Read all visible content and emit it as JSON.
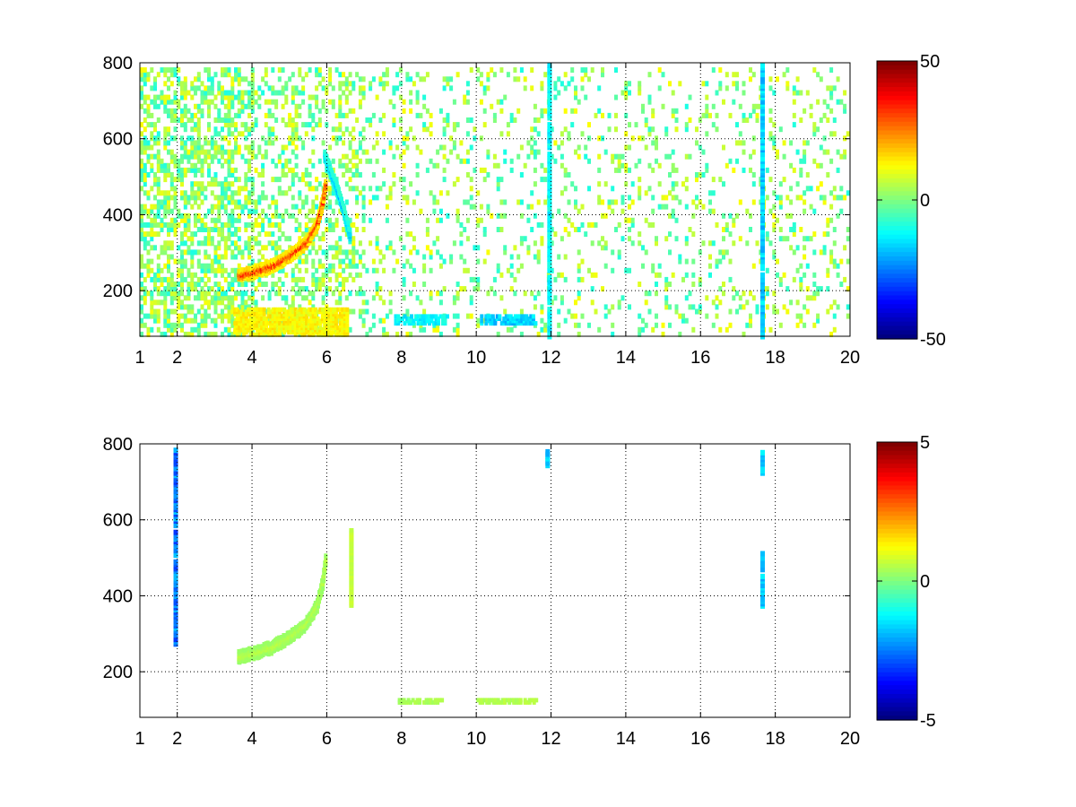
{
  "chart_data": [
    {
      "type": "heatmap",
      "title": "",
      "xlabel": "",
      "ylabel": "",
      "xlim": [
        1,
        20
      ],
      "ylim": [
        80,
        800
      ],
      "xticks": [
        "1",
        "2",
        "4",
        "6",
        "8",
        "10",
        "12",
        "14",
        "16",
        "18",
        "20"
      ],
      "yticks": [
        "200",
        "400",
        "600",
        "800"
      ],
      "grid": true,
      "colormap": "jet",
      "clim": [
        -50,
        50
      ],
      "colorbar_ticks": [
        "50",
        "0",
        "-50"
      ],
      "features": [
        {
          "kind": "ridge",
          "x": [
            3.6,
            4.0,
            4.5,
            5.0,
            5.4,
            5.7,
            5.85,
            5.95
          ],
          "y": [
            245,
            255,
            270,
            300,
            330,
            380,
            440,
            500
          ],
          "value": 35
        },
        {
          "kind": "ridge",
          "x": [
            5.9,
            6.2,
            6.4,
            6.5,
            6.6
          ],
          "y": [
            560,
            480,
            420,
            380,
            340
          ],
          "value": -20
        },
        {
          "kind": "band",
          "x_range": [
            3.5,
            6.5
          ],
          "y_range": [
            90,
            160
          ],
          "value": 15
        },
        {
          "kind": "band",
          "x_range": [
            7.8,
            9.2
          ],
          "y_range": [
            120,
            140
          ],
          "value": -15
        },
        {
          "kind": "band",
          "x_range": [
            10.1,
            11.6
          ],
          "y_range": [
            120,
            140
          ],
          "value": -20
        },
        {
          "kind": "column",
          "x": 17.6,
          "y_range": [
            80,
            800
          ],
          "value": -20
        },
        {
          "kind": "column",
          "x": 11.9,
          "y_range": [
            80,
            800
          ],
          "value": -15
        }
      ]
    },
    {
      "type": "heatmap",
      "title": "",
      "xlabel": "",
      "ylabel": "",
      "xlim": [
        1,
        20
      ],
      "ylim": [
        80,
        800
      ],
      "xticks": [
        "1",
        "2",
        "4",
        "6",
        "8",
        "10",
        "12",
        "14",
        "16",
        "18",
        "20"
      ],
      "yticks": [
        "200",
        "400",
        "600",
        "800"
      ],
      "grid": true,
      "colormap": "jet",
      "clim": [
        -5,
        5
      ],
      "colorbar_ticks": [
        "5",
        "0",
        "-5"
      ],
      "features": [
        {
          "kind": "ridge",
          "x": [
            3.6,
            4.0,
            4.5,
            5.0,
            5.4,
            5.7,
            5.85,
            5.95
          ],
          "y": [
            245,
            255,
            270,
            300,
            330,
            380,
            440,
            520
          ],
          "value": 0.6
        },
        {
          "kind": "ridge",
          "x": [
            6.6,
            6.6,
            6.6
          ],
          "y": [
            380,
            450,
            580
          ],
          "value": 0.8
        },
        {
          "kind": "band",
          "x_range": [
            7.9,
            9.1
          ],
          "y_range": [
            125,
            135
          ],
          "value": 0.5
        },
        {
          "kind": "band",
          "x_range": [
            10.0,
            11.6
          ],
          "y_range": [
            125,
            135
          ],
          "value": 0.6
        },
        {
          "kind": "column",
          "x": 1.9,
          "y_range": [
            280,
            790
          ],
          "value": -3
        },
        {
          "kind": "column",
          "x": 17.6,
          "y_range": [
            380,
            520
          ],
          "value": -2
        },
        {
          "kind": "column",
          "x": 17.6,
          "y_range": [
            730,
            790
          ],
          "value": -2
        },
        {
          "kind": "column",
          "x": 11.85,
          "y_range": [
            750,
            790
          ],
          "value": -2
        }
      ]
    }
  ]
}
